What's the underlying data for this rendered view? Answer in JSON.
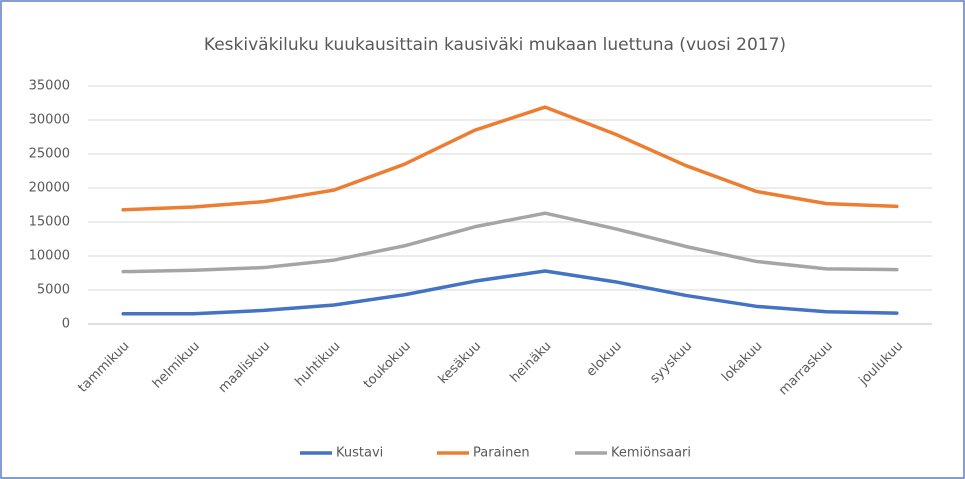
{
  "chart_data": {
    "type": "line",
    "title": "Keskiväkiluku kuukausittain kausiväki mukaan luettuna (vuosi 2017)",
    "categories": [
      "tammikuu",
      "helmikuu",
      "maaliskuu",
      "huhtikuu",
      "toukokuu",
      "kesäkuu",
      "heinäku",
      "elokuu",
      "syyskuu",
      "lokakuu",
      "marraskuu",
      "joulukuu"
    ],
    "series": [
      {
        "name": "Kustavi",
        "color": "#4472c4",
        "values": [
          1500,
          1500,
          2000,
          2800,
          4300,
          6300,
          7800,
          6200,
          4200,
          2600,
          1800,
          1600
        ]
      },
      {
        "name": "Parainen",
        "color": "#ed7d31",
        "values": [
          16800,
          17200,
          18000,
          19700,
          23500,
          28500,
          31900,
          27900,
          23300,
          19500,
          17700,
          17300
        ]
      },
      {
        "name": "Kemiönsaari",
        "color": "#a5a5a5",
        "values": [
          7700,
          7900,
          8300,
          9400,
          11500,
          14300,
          16300,
          14000,
          11400,
          9200,
          8100,
          8000
        ]
      }
    ],
    "ylim": [
      0,
      35000
    ],
    "yticks": [
      0,
      5000,
      10000,
      15000,
      20000,
      25000,
      30000,
      35000
    ],
    "grid": true,
    "legend": "bottom"
  }
}
